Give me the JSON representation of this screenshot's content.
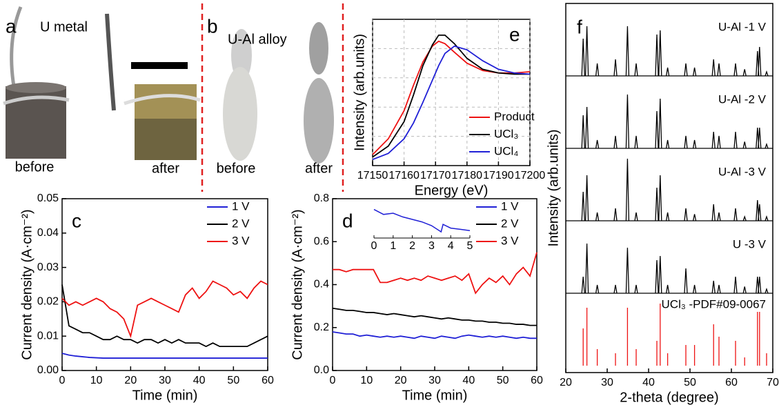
{
  "photos": [
    {
      "label": "a",
      "title": "U metal",
      "captions": [
        "before",
        "after"
      ]
    },
    {
      "label": "b",
      "title": "U-Al alloy",
      "captions": [
        "before",
        "after"
      ]
    }
  ],
  "chart_data": [
    {
      "type": "line",
      "label": "c",
      "xlabel": "Time (min)",
      "ylabel": "Current density (A·cm⁻²)",
      "xlim": [
        0,
        60
      ],
      "xticks": [
        0,
        10,
        20,
        30,
        40,
        50,
        60
      ],
      "ylim": [
        0,
        0.05
      ],
      "yticks": [
        {
          "value": 0,
          "label": "0.00"
        },
        0.01,
        0.02,
        0.03,
        0.04,
        0.05
      ],
      "legend": "upper right",
      "x": [
        0,
        2,
        4,
        6,
        8,
        10,
        12,
        14,
        16,
        18,
        20,
        22,
        24,
        26,
        28,
        30,
        32,
        34,
        36,
        38,
        40,
        42,
        44,
        46,
        48,
        50,
        52,
        54,
        56,
        58,
        60
      ],
      "series": [
        {
          "name": "1 V",
          "color": "#1f1fd6",
          "values": [
            0.005,
            0.0045,
            0.0042,
            0.004,
            0.0038,
            0.0037,
            0.0036,
            0.0036,
            0.0036,
            0.0036,
            0.0036,
            0.0036,
            0.0036,
            0.0036,
            0.0036,
            0.0036,
            0.0036,
            0.0036,
            0.0036,
            0.0036,
            0.0036,
            0.0036,
            0.0036,
            0.0036,
            0.0036,
            0.0036,
            0.0036,
            0.0036,
            0.0036,
            0.0036,
            0.0036
          ]
        },
        {
          "name": "2 V",
          "color": "#000000",
          "values": [
            0.025,
            0.013,
            0.012,
            0.011,
            0.011,
            0.01,
            0.009,
            0.009,
            0.01,
            0.009,
            0.009,
            0.008,
            0.009,
            0.009,
            0.008,
            0.009,
            0.008,
            0.009,
            0.008,
            0.008,
            0.008,
            0.007,
            0.008,
            0.007,
            0.007,
            0.007,
            0.007,
            0.007,
            0.008,
            0.009,
            0.01
          ]
        },
        {
          "name": "3 V",
          "color": "#ee1111",
          "values": [
            0.021,
            0.019,
            0.02,
            0.019,
            0.02,
            0.021,
            0.02,
            0.018,
            0.017,
            0.015,
            0.01,
            0.019,
            0.02,
            0.021,
            0.02,
            0.019,
            0.018,
            0.017,
            0.022,
            0.024,
            0.021,
            0.023,
            0.026,
            0.025,
            0.024,
            0.022,
            0.023,
            0.021,
            0.024,
            0.026,
            0.025
          ]
        }
      ]
    },
    {
      "type": "line",
      "label": "d",
      "xlabel": "Time (min)",
      "ylabel": "Current density (A·cm⁻²)",
      "xlim": [
        0,
        60
      ],
      "xticks": [
        0,
        10,
        20,
        30,
        40,
        50,
        60
      ],
      "ylim": [
        0,
        0.8
      ],
      "yticks": [
        {
          "value": 0,
          "label": "0.0"
        },
        0.2,
        0.4,
        0.6,
        0.8
      ],
      "legend": "upper right",
      "x": [
        0,
        2,
        4,
        6,
        8,
        10,
        12,
        14,
        16,
        18,
        20,
        22,
        24,
        26,
        28,
        30,
        32,
        34,
        36,
        38,
        40,
        42,
        44,
        46,
        48,
        50,
        52,
        54,
        56,
        58,
        60
      ],
      "series": [
        {
          "name": "1 V",
          "color": "#1f1fd6",
          "values": [
            0.18,
            0.175,
            0.17,
            0.17,
            0.16,
            0.165,
            0.16,
            0.155,
            0.16,
            0.155,
            0.16,
            0.155,
            0.15,
            0.16,
            0.155,
            0.15,
            0.16,
            0.155,
            0.15,
            0.16,
            0.165,
            0.16,
            0.155,
            0.16,
            0.155,
            0.16,
            0.155,
            0.15,
            0.155,
            0.15,
            0.15
          ]
        },
        {
          "name": "2 V",
          "color": "#000000",
          "values": [
            0.29,
            0.285,
            0.28,
            0.28,
            0.275,
            0.27,
            0.27,
            0.265,
            0.26,
            0.265,
            0.26,
            0.255,
            0.25,
            0.255,
            0.25,
            0.245,
            0.24,
            0.245,
            0.24,
            0.235,
            0.235,
            0.23,
            0.23,
            0.225,
            0.225,
            0.22,
            0.22,
            0.215,
            0.215,
            0.21,
            0.21
          ]
        },
        {
          "name": "3 V",
          "color": "#ee1111",
          "values": [
            0.47,
            0.47,
            0.46,
            0.47,
            0.47,
            0.47,
            0.47,
            0.41,
            0.41,
            0.42,
            0.43,
            0.42,
            0.43,
            0.42,
            0.44,
            0.43,
            0.42,
            0.43,
            0.44,
            0.42,
            0.45,
            0.36,
            0.4,
            0.43,
            0.41,
            0.44,
            0.4,
            0.45,
            0.48,
            0.44,
            0.55
          ]
        }
      ],
      "inset": {
        "xlim": [
          0,
          5
        ],
        "xticks": [
          0,
          1,
          2,
          3,
          4,
          5
        ],
        "ylim": [
          0.55,
          0.8
        ],
        "color": "#1f1fd6",
        "x": [
          0,
          0.5,
          1,
          1.5,
          2,
          2.5,
          3,
          3.5,
          3.6,
          4,
          4.5,
          5
        ],
        "values": [
          0.78,
          0.74,
          0.75,
          0.72,
          0.7,
          0.68,
          0.65,
          0.6,
          0.66,
          0.63,
          0.62,
          0.61
        ]
      }
    },
    {
      "type": "line",
      "label": "e",
      "xlabel": "Energy (eV)",
      "ylabel": "Intensity (arb.units)",
      "xlim": [
        17150,
        17200
      ],
      "xticks": [
        17150,
        17160,
        17170,
        17180,
        17190,
        17200
      ],
      "ylim": [
        0,
        1.2
      ],
      "grid": true,
      "legend": "lower right",
      "x": [
        17150,
        17155,
        17160,
        17163,
        17166,
        17169,
        17171,
        17173,
        17176,
        17180,
        17185,
        17190,
        17195,
        17200
      ],
      "series": [
        {
          "name": "Product",
          "color": "#ee1111",
          "values": [
            0.09,
            0.22,
            0.45,
            0.66,
            0.85,
            0.98,
            1.02,
            1.0,
            0.93,
            0.84,
            0.78,
            0.76,
            0.76,
            0.77
          ]
        },
        {
          "name": "UCl₃",
          "color": "#000000",
          "values": [
            0.07,
            0.16,
            0.36,
            0.58,
            0.82,
            0.99,
            1.07,
            1.07,
            1.0,
            0.88,
            0.79,
            0.76,
            0.75,
            0.75
          ]
        },
        {
          "name": "UCl₄",
          "color": "#1f1fd6",
          "values": [
            0.05,
            0.1,
            0.22,
            0.35,
            0.52,
            0.7,
            0.82,
            0.92,
            0.98,
            0.95,
            0.86,
            0.79,
            0.76,
            0.75
          ]
        }
      ]
    },
    {
      "type": "stacked",
      "label": "f",
      "xlabel": "2-theta (degree)",
      "ylabel": "Intensity (arb.units)",
      "xlim": [
        20,
        70
      ],
      "xticks": [
        20,
        30,
        40,
        50,
        60,
        70
      ],
      "x": [
        24.2,
        25.1,
        27.6,
        32.0,
        34.9,
        37.0,
        42.0,
        42.8,
        44.6,
        49.0,
        51.1,
        55.7,
        57.0,
        61.0,
        63.2,
        66.3,
        66.8,
        68.5
      ],
      "series": [
        {
          "name": "U-Al -1 V",
          "color": "#000000",
          "values": [
            0.45,
            0.6,
            0.15,
            0.2,
            0.6,
            0.15,
            0.5,
            0.55,
            0.1,
            0.15,
            0.1,
            0.2,
            0.15,
            0.15,
            0.08,
            0.3,
            0.35,
            0.05
          ]
        },
        {
          "name": "U-Al -2 V",
          "color": "#000000",
          "values": [
            0.4,
            0.5,
            0.1,
            0.15,
            0.65,
            0.15,
            0.45,
            0.6,
            0.1,
            0.15,
            0.1,
            0.2,
            0.15,
            0.2,
            0.08,
            0.25,
            0.25,
            0.05
          ]
        },
        {
          "name": "U-Al -3 V",
          "color": "#000000",
          "values": [
            0.35,
            0.55,
            0.1,
            0.15,
            0.75,
            0.1,
            0.4,
            0.55,
            0.1,
            0.15,
            0.08,
            0.2,
            0.1,
            0.15,
            0.05,
            0.25,
            0.2,
            0.05
          ]
        },
        {
          "name": "U -3 V",
          "color": "#000000",
          "values": [
            0.2,
            0.6,
            0.1,
            0.1,
            0.55,
            0.1,
            0.4,
            0.45,
            0.1,
            0.3,
            0.1,
            0.15,
            0.1,
            0.2,
            0.08,
            0.2,
            0.2,
            0.05
          ]
        },
        {
          "name": "UCl₃ -PDF#09-0067",
          "color": "#ee1111",
          "style": "stick",
          "values": [
            0.45,
            0.7,
            0.2,
            0.15,
            0.7,
            0.2,
            0.3,
            0.75,
            0.15,
            0.25,
            0.25,
            0.5,
            0.35,
            0.3,
            0.1,
            0.65,
            0.65,
            0.15
          ]
        }
      ]
    }
  ]
}
